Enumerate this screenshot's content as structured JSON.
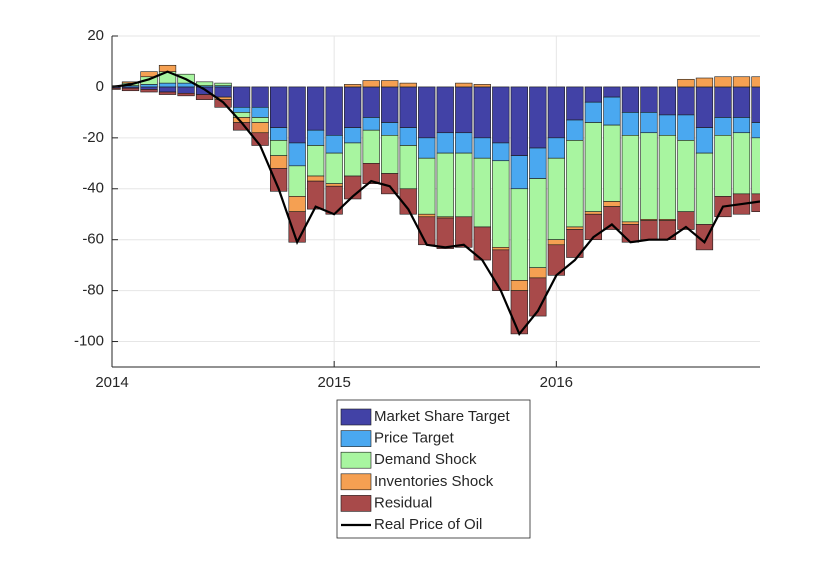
{
  "chart_data": {
    "type": "bar",
    "stacked": true,
    "x": [
      0,
      1,
      2,
      3,
      4,
      5,
      6,
      7,
      8,
      9,
      10,
      11,
      12,
      13,
      14,
      15,
      16,
      17,
      18,
      19,
      20,
      21,
      22,
      23,
      24,
      25,
      26,
      27,
      28,
      29,
      30,
      31,
      32,
      33,
      34,
      35
    ],
    "xlim": [
      0,
      35
    ],
    "xticks": [
      {
        "value": 0,
        "label": "2014"
      },
      {
        "value": 12,
        "label": "2015"
      },
      {
        "value": 24,
        "label": "2016"
      }
    ],
    "ylim": [
      -110,
      20
    ],
    "yticks": [
      20,
      0,
      -20,
      -40,
      -60,
      -80,
      -100
    ],
    "grid": true,
    "legend": "bottom",
    "series": [
      {
        "name": "Market Share Target",
        "color": "#4242a6",
        "values": [
          -0.5,
          -0.5,
          -1,
          -2,
          -2.5,
          -3,
          -4,
          -8,
          -8,
          -16,
          -22,
          -17,
          -19,
          -16,
          -12,
          -14,
          -16,
          -20,
          -18,
          -18,
          -20,
          -22,
          -27,
          -24,
          -20,
          -13,
          -6,
          -4,
          -10,
          -10,
          -11,
          -11,
          -16,
          -12,
          -12,
          -14
        ]
      },
      {
        "name": "Price Target",
        "color": "#4aa8f0",
        "values": [
          0,
          0.5,
          1,
          1.5,
          1.5,
          0.5,
          0.5,
          -2,
          -4,
          -5,
          -9,
          -6,
          -7,
          -6,
          -5,
          -5,
          -7,
          -8,
          -8,
          -8,
          -8,
          -7,
          -13,
          -12,
          -8,
          -8,
          -8,
          -11,
          -9,
          -8,
          -8,
          -10,
          -10,
          -7,
          -6,
          -6
        ]
      },
      {
        "name": "Demand Shock",
        "color": "#a8f5a0",
        "values": [
          0.5,
          1,
          3,
          4.5,
          3.5,
          1.5,
          1,
          -2,
          -2,
          -6,
          -12,
          -12,
          -12,
          -13,
          -13,
          -15,
          -17,
          -22,
          -25,
          -25,
          -27,
          -34,
          -36,
          -35,
          -32,
          -34,
          -35,
          -30,
          -34,
          -34,
          -33,
          -28,
          -28,
          -24,
          -24,
          -22
        ]
      },
      {
        "name": "Inventories Shock",
        "color": "#f5a052",
        "values": [
          0,
          0.5,
          2,
          2.5,
          0,
          0,
          -1,
          -2,
          -4,
          -5,
          -6,
          -2,
          -1,
          1,
          2.5,
          2.5,
          1.5,
          -1,
          -0.5,
          1.5,
          1,
          -1,
          -4,
          -4,
          -2,
          -1,
          -1,
          -2,
          -1,
          -0.5,
          -0.5,
          3,
          3.5,
          4,
          4,
          4
        ]
      },
      {
        "name": "Residual",
        "color": "#a84a4a",
        "values": [
          -0.5,
          -1,
          -1,
          -1,
          -1,
          -2,
          -3,
          -3,
          -5,
          -9,
          -12,
          -11,
          -11,
          -9,
          -8,
          -8,
          -10,
          -11,
          -12,
          -12,
          -13,
          -16,
          -17,
          -15,
          -12,
          -11,
          -10,
          -9,
          -7,
          -7.5,
          -7.5,
          -7,
          -10,
          -8,
          -8,
          -7
        ]
      },
      {
        "name": "Real Price of Oil",
        "type": "line",
        "color": "#000000",
        "values": [
          0,
          1,
          3,
          6,
          3,
          -1,
          -6,
          -14,
          -23,
          -40,
          -61,
          -47,
          -50,
          -43,
          -37,
          -39,
          -48,
          -62,
          -63,
          -62,
          -68,
          -80,
          -97,
          -88,
          -74,
          -68,
          -59,
          -54,
          -61,
          -60,
          -60,
          -55,
          -61,
          -47,
          -46,
          -45
        ]
      }
    ]
  }
}
